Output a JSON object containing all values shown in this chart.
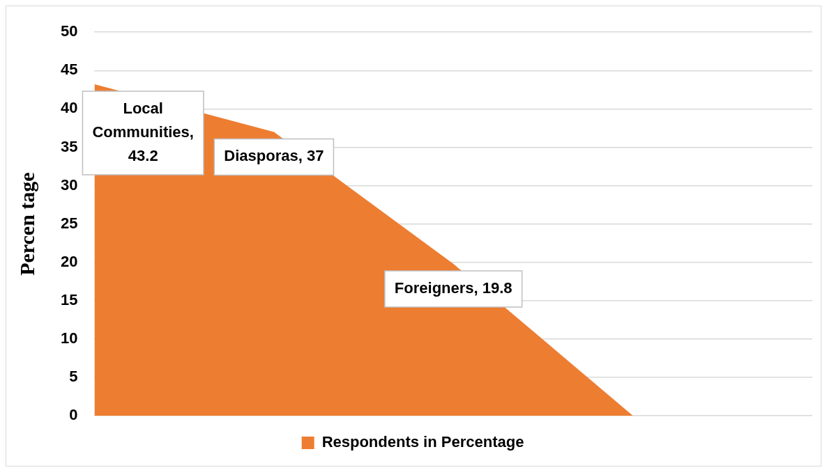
{
  "chart_data": {
    "type": "area",
    "ylabel": "Percen tage",
    "categories": [
      null,
      null,
      null,
      null,
      null
    ],
    "series": [
      {
        "name": "Respondents in Percentage",
        "color": "#ed7d31",
        "values": [
          43.2,
          37,
          19.8,
          0,
          null
        ],
        "value_labels": [
          "Local Communities, 43.2",
          "Diasporas, 37",
          "Foreigners, 19.8",
          null,
          null
        ]
      }
    ],
    "ylim": [
      0,
      50
    ],
    "yticks": [
      0,
      5,
      10,
      15,
      20,
      25,
      30,
      35,
      40,
      45,
      50
    ],
    "grid": "y",
    "legend": "bottom"
  }
}
